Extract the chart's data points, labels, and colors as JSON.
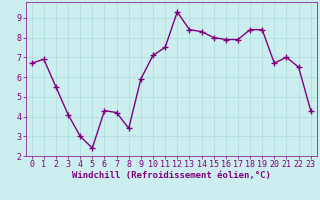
{
  "x": [
    0,
    1,
    2,
    3,
    4,
    5,
    6,
    7,
    8,
    9,
    10,
    11,
    12,
    13,
    14,
    15,
    16,
    17,
    18,
    19,
    20,
    21,
    22,
    23
  ],
  "y": [
    6.7,
    6.9,
    5.5,
    4.1,
    3.0,
    2.4,
    4.3,
    4.2,
    3.4,
    5.9,
    7.1,
    7.5,
    9.3,
    8.4,
    8.3,
    8.0,
    7.9,
    7.9,
    8.4,
    8.4,
    6.7,
    7.0,
    6.5,
    4.3
  ],
  "line_color": "#800080",
  "marker": "+",
  "marker_size": 4,
  "linewidth": 1.0,
  "xlabel": "Windchill (Refroidissement éolien,°C)",
  "xlabel_fontsize": 6.5,
  "xlim": [
    -0.5,
    23.5
  ],
  "ylim": [
    2,
    9.8
  ],
  "yticks": [
    2,
    3,
    4,
    5,
    6,
    7,
    8,
    9
  ],
  "xticks": [
    0,
    1,
    2,
    3,
    4,
    5,
    6,
    7,
    8,
    9,
    10,
    11,
    12,
    13,
    14,
    15,
    16,
    17,
    18,
    19,
    20,
    21,
    22,
    23
  ],
  "grid_color": "#aadddd",
  "bg_color": "#cceeee",
  "tick_color": "#800080",
  "tick_fontsize": 6.0,
  "xlabel_color": "#800080",
  "spine_color": "#800080"
}
